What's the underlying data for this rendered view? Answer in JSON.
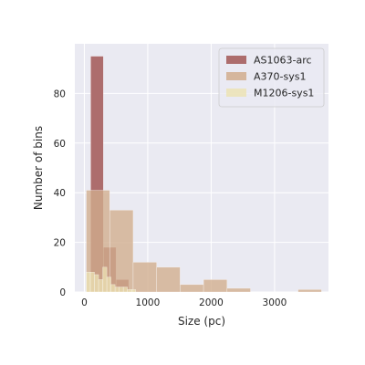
{
  "colors": {
    "background": "#ffffff",
    "plot_background": "#eaeaf2",
    "grid": "#ffffff",
    "legend_background": "#eaeaf2",
    "legend_border": "#cccccc"
  },
  "chart_data": {
    "type": "bar",
    "histogram": true,
    "xlabel": "Size (pc)",
    "ylabel": "Number of bins",
    "xlim": [
      -150,
      3850
    ],
    "ylim": [
      0,
      100
    ],
    "x_ticks": [
      0,
      1000,
      2000,
      3000
    ],
    "y_ticks": [
      0,
      20,
      40,
      60,
      80
    ],
    "grid": true,
    "legend_position": "top-right",
    "series": [
      {
        "name": "AS1063-arc",
        "color": "#ad6d6d",
        "opacity": 1,
        "bins": [
          {
            "x0": 100,
            "x1": 300,
            "value": 95
          },
          {
            "x0": 300,
            "x1": 500,
            "value": 18
          },
          {
            "x0": 500,
            "x1": 700,
            "value": 5
          }
        ]
      },
      {
        "name": "A370-sys1",
        "color": "#d1ad8d",
        "opacity": 0.78,
        "bins": [
          {
            "x0": 30,
            "x1": 400,
            "value": 41
          },
          {
            "x0": 400,
            "x1": 770,
            "value": 33
          },
          {
            "x0": 770,
            "x1": 1140,
            "value": 12
          },
          {
            "x0": 1140,
            "x1": 1510,
            "value": 10
          },
          {
            "x0": 1510,
            "x1": 1880,
            "value": 3
          },
          {
            "x0": 1880,
            "x1": 2250,
            "value": 5
          },
          {
            "x0": 2250,
            "x1": 2620,
            "value": 1.5
          },
          {
            "x0": 3370,
            "x1": 3740,
            "value": 1
          }
        ]
      },
      {
        "name": "M1206-sys1",
        "color": "#ece3b4",
        "opacity": 0.75,
        "bins": [
          {
            "x0": 30,
            "x1": 95,
            "value": 8
          },
          {
            "x0": 95,
            "x1": 160,
            "value": 8
          },
          {
            "x0": 160,
            "x1": 225,
            "value": 7
          },
          {
            "x0": 225,
            "x1": 290,
            "value": 5
          },
          {
            "x0": 290,
            "x1": 355,
            "value": 10
          },
          {
            "x0": 355,
            "x1": 420,
            "value": 6
          },
          {
            "x0": 420,
            "x1": 485,
            "value": 3
          },
          {
            "x0": 485,
            "x1": 550,
            "value": 2
          },
          {
            "x0": 550,
            "x1": 615,
            "value": 2
          },
          {
            "x0": 615,
            "x1": 680,
            "value": 2
          },
          {
            "x0": 680,
            "x1": 745,
            "value": 1
          },
          {
            "x0": 745,
            "x1": 810,
            "value": 1
          }
        ]
      }
    ]
  }
}
